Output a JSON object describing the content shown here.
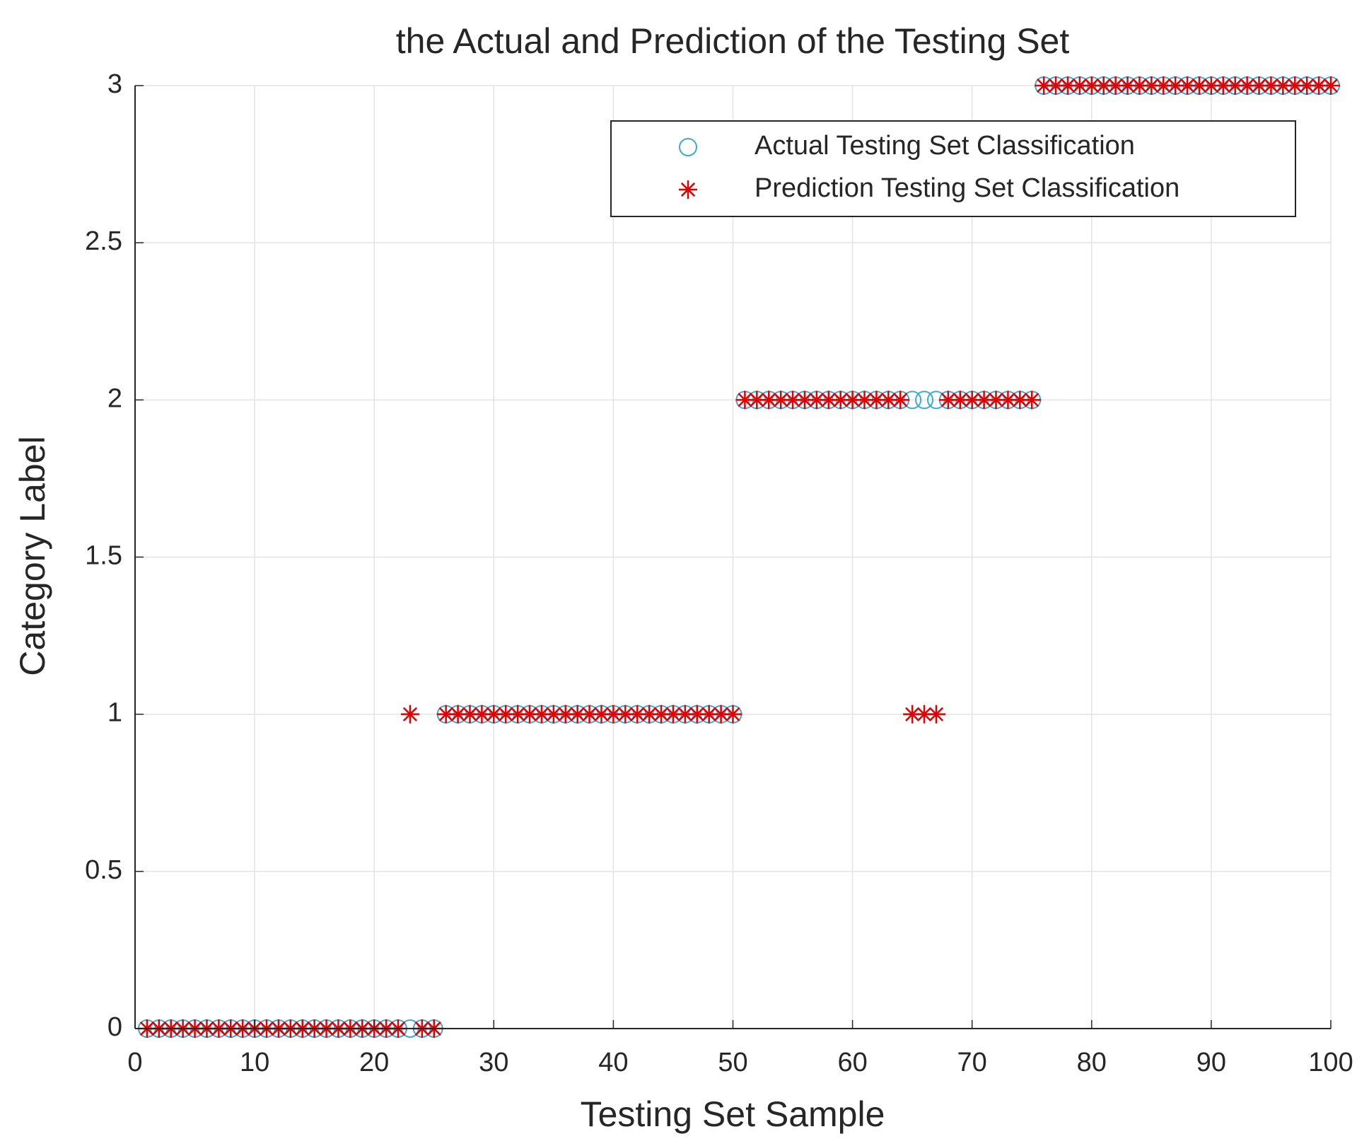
{
  "chart_data": {
    "type": "scatter",
    "title": "the Actual and Prediction of the Testing Set",
    "xlabel": "Testing Set Sample",
    "ylabel": "Category Label",
    "x": [
      1,
      2,
      3,
      4,
      5,
      6,
      7,
      8,
      9,
      10,
      11,
      12,
      13,
      14,
      15,
      16,
      17,
      18,
      19,
      20,
      21,
      22,
      23,
      24,
      25,
      26,
      27,
      28,
      29,
      30,
      31,
      32,
      33,
      34,
      35,
      36,
      37,
      38,
      39,
      40,
      41,
      42,
      43,
      44,
      45,
      46,
      47,
      48,
      49,
      50,
      51,
      52,
      53,
      54,
      55,
      56,
      57,
      58,
      59,
      60,
      61,
      62,
      63,
      64,
      65,
      66,
      67,
      68,
      69,
      70,
      71,
      72,
      73,
      74,
      75,
      76,
      77,
      78,
      79,
      80,
      81,
      82,
      83,
      84,
      85,
      86,
      87,
      88,
      89,
      90,
      91,
      92,
      93,
      94,
      95,
      96,
      97,
      98,
      99,
      100
    ],
    "series": [
      {
        "name": "Actual Testing Set Classification",
        "color": "#3fa9d6",
        "marker": "circle",
        "values": [
          0,
          0,
          0,
          0,
          0,
          0,
          0,
          0,
          0,
          0,
          0,
          0,
          0,
          0,
          0,
          0,
          0,
          0,
          0,
          0,
          0,
          0,
          0,
          0,
          0,
          1,
          1,
          1,
          1,
          1,
          1,
          1,
          1,
          1,
          1,
          1,
          1,
          1,
          1,
          1,
          1,
          1,
          1,
          1,
          1,
          1,
          1,
          1,
          1,
          1,
          2,
          2,
          2,
          2,
          2,
          2,
          2,
          2,
          2,
          2,
          2,
          2,
          2,
          2,
          2,
          2,
          2,
          2,
          2,
          2,
          2,
          2,
          2,
          2,
          2,
          3,
          3,
          3,
          3,
          3,
          3,
          3,
          3,
          3,
          3,
          3,
          3,
          3,
          3,
          3,
          3,
          3,
          3,
          3,
          3,
          3,
          3,
          3,
          3,
          3
        ]
      },
      {
        "name": "Prediction Testing Set Classification",
        "color": "#e00000",
        "marker": "star",
        "values": [
          0,
          0,
          0,
          0,
          0,
          0,
          0,
          0,
          0,
          0,
          0,
          0,
          0,
          0,
          0,
          0,
          0,
          0,
          0,
          0,
          0,
          0,
          1,
          0,
          0,
          1,
          1,
          1,
          1,
          1,
          1,
          1,
          1,
          1,
          1,
          1,
          1,
          1,
          1,
          1,
          1,
          1,
          1,
          1,
          1,
          1,
          1,
          1,
          1,
          1,
          2,
          2,
          2,
          2,
          2,
          2,
          2,
          2,
          2,
          2,
          2,
          2,
          2,
          2,
          1,
          1,
          1,
          2,
          2,
          2,
          2,
          2,
          2,
          2,
          2,
          3,
          3,
          3,
          3,
          3,
          3,
          3,
          3,
          3,
          3,
          3,
          3,
          3,
          3,
          3,
          3,
          3,
          3,
          3,
          3,
          3,
          3,
          3,
          3,
          3
        ]
      }
    ],
    "xlim": [
      0,
      100
    ],
    "xticks": [
      0,
      10,
      20,
      30,
      40,
      50,
      60,
      70,
      80,
      90,
      100
    ],
    "ylim": [
      0,
      3
    ],
    "yticks": [
      0,
      0.5,
      1,
      1.5,
      2,
      2.5,
      3
    ],
    "grid": true,
    "legend": "northeast"
  }
}
